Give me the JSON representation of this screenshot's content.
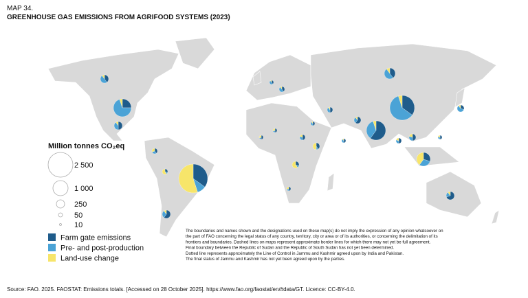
{
  "header": {
    "label": "MAP 34.",
    "title": "GREENHOUSE GAS EMISSIONS FROM AGRIFOOD SYSTEMS (2023)"
  },
  "legend": {
    "title": "Million tonnes CO₂eq",
    "sizes": [
      "2 500",
      "1 000",
      "250",
      "50",
      "10"
    ],
    "colors": [
      {
        "label": "Farm gate emissions",
        "color": "#1f5c8b"
      },
      {
        "label": "Pre- and post-production",
        "color": "#4ba3d6"
      },
      {
        "label": "Land-use change",
        "color": "#f7e56a"
      }
    ]
  },
  "disclaimer": [
    "The boundaries and names shown and the designations used on these map(s) do not imply the expression of any opinion whatsoever on",
    "the part of FAO concerning the legal status of any country, territory, city or area or of its authorities, or concerning the delimitation of its",
    "frontiers and boundaries. Dashed lines on maps represent approximate border lines for which there may not yet be full agreement.",
    "Final boundary between the Republic of Sudan and the Republic of South Sudan has not yet been determined.",
    "Dotted line represents approximately the Line of Control in Jammu and Kashmir agreed upon by India and Pakistan.",
    "The final status of Jammu and Kashmir has not yet been agreed upon by the parties."
  ],
  "source": "Source: FAO. 2025. FAOSTAT: Emissions totals. [Accessed on 28 October 2025]. https://www.fao.org/faostat/en/#data/GT. Licence: CC-BY-4.0."
}
